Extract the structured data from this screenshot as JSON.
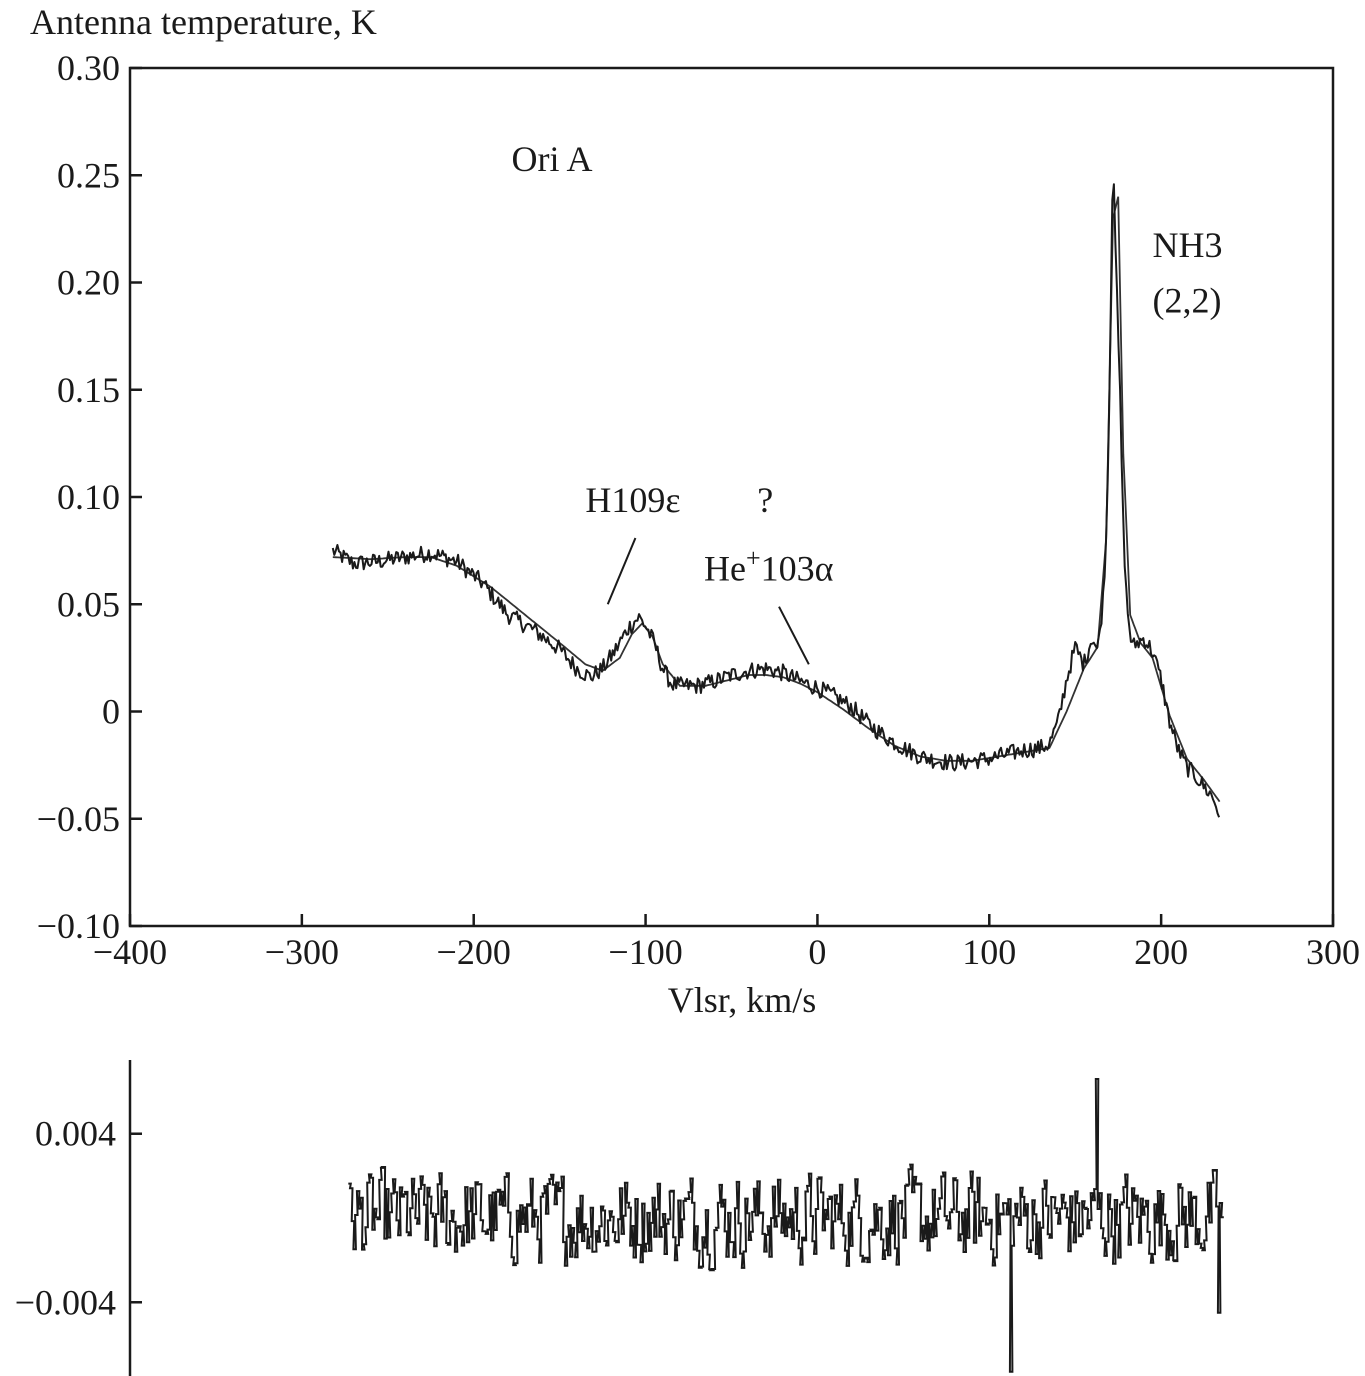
{
  "chart_data": [
    {
      "type": "line",
      "ylabel": "Antenna temperature, K",
      "xlabel": "Vlsr, km/s",
      "xlim": [
        -400,
        300
      ],
      "ylim": [
        -0.1,
        0.3
      ],
      "xticks": [
        "−400",
        "−300",
        "−200",
        "−100",
        "0",
        "100",
        "200",
        "300"
      ],
      "xtick_values": [
        -400,
        -300,
        -200,
        -100,
        0,
        100,
        200,
        300
      ],
      "yticks": [
        "0.30",
        "0.25",
        "0.20",
        "0.15",
        "0.10",
        "0.05",
        "0",
        "−0.05",
        "−0.10"
      ],
      "ytick_values": [
        0.3,
        0.25,
        0.2,
        0.15,
        0.1,
        0.05,
        0,
        -0.05,
        -0.1
      ],
      "grid": false,
      "series": [
        {
          "role": "observed",
          "x": [
            -282,
            -270,
            -255,
            -240,
            -225,
            -210,
            -195,
            -180,
            -165,
            -150,
            -140,
            -132,
            -125,
            -118,
            -110,
            -104,
            -100,
            -95,
            -90,
            -85,
            -80,
            -70,
            -60,
            -50,
            -40,
            -30,
            -20,
            -10,
            0,
            10,
            20,
            30,
            40,
            50,
            60,
            70,
            80,
            90,
            100,
            110,
            120,
            130,
            135,
            140,
            145,
            150,
            155,
            160,
            163,
            166,
            168,
            170,
            172,
            174,
            176,
            178,
            180,
            183,
            186,
            190,
            195,
            200,
            205,
            210,
            215,
            220,
            225,
            230,
            234
          ],
          "y": [
            0.075,
            0.069,
            0.07,
            0.072,
            0.074,
            0.07,
            0.06,
            0.045,
            0.038,
            0.029,
            0.02,
            0.016,
            0.02,
            0.028,
            0.039,
            0.044,
            0.04,
            0.032,
            0.02,
            0.013,
            0.012,
            0.012,
            0.014,
            0.017,
            0.019,
            0.02,
            0.018,
            0.014,
            0.011,
            0.007,
            0.002,
            -0.006,
            -0.012,
            -0.017,
            -0.021,
            -0.023,
            -0.024,
            -0.023,
            -0.022,
            -0.02,
            -0.018,
            -0.017,
            -0.015,
            -0.005,
            0.015,
            0.03,
            0.022,
            0.035,
            0.028,
            0.05,
            0.08,
            0.15,
            0.265,
            0.2,
            0.15,
            0.085,
            0.05,
            0.03,
            0.032,
            0.034,
            0.028,
            0.015,
            -0.005,
            -0.018,
            -0.026,
            -0.03,
            -0.035,
            -0.04,
            -0.048
          ]
        },
        {
          "role": "fit",
          "x": [
            -282,
            -260,
            -240,
            -225,
            -210,
            -190,
            -170,
            -150,
            -135,
            -125,
            -115,
            -108,
            -102,
            -96,
            -90,
            -80,
            -65,
            -50,
            -40,
            -30,
            -20,
            -10,
            0,
            15,
            30,
            45,
            60,
            75,
            90,
            105,
            120,
            135,
            145,
            155,
            163,
            168,
            172,
            175,
            178,
            182,
            188,
            195,
            205,
            215,
            225,
            234
          ],
          "y": [
            0.072,
            0.071,
            0.072,
            0.072,
            0.068,
            0.058,
            0.045,
            0.032,
            0.022,
            0.019,
            0.025,
            0.036,
            0.041,
            0.035,
            0.022,
            0.012,
            0.012,
            0.015,
            0.017,
            0.017,
            0.016,
            0.013,
            0.009,
            0.001,
            -0.008,
            -0.016,
            -0.021,
            -0.023,
            -0.023,
            -0.021,
            -0.019,
            -0.017,
            0.0,
            0.02,
            0.03,
            0.08,
            0.23,
            0.24,
            0.12,
            0.045,
            0.032,
            0.025,
            -0.002,
            -0.022,
            -0.032,
            -0.042
          ]
        }
      ],
      "annotations": [
        {
          "text": "Ori A",
          "x": -178,
          "y": 0.252
        },
        {
          "text": "H109ε",
          "x": -135,
          "y": 0.093,
          "pointer_x": -122,
          "pointer_y": 0.05
        },
        {
          "text": "?",
          "x": -35,
          "y": 0.093
        },
        {
          "text": "He",
          "sup": "+",
          "text_after": "103α",
          "x": -66,
          "y": 0.061,
          "pointer_x": -5,
          "pointer_y": 0.022
        },
        {
          "text": "NH3",
          "x": 195,
          "y": 0.212
        },
        {
          "text": "(2,2)",
          "x": 195,
          "y": 0.186
        }
      ]
    },
    {
      "type": "line",
      "role": "residuals",
      "xlim": [
        -400,
        300
      ],
      "ylim": [
        -0.0075,
        0.0075
      ],
      "yticks": [
        "0.004",
        "−0.004"
      ],
      "ytick_values": [
        0.004,
        -0.004
      ],
      "series": [
        {
          "x_range": [
            -273,
            235
          ],
          "amplitude": 0.0032,
          "extremes": [
            {
              "x": 162,
              "y": 0.0066
            },
            {
              "x": 112,
              "y": -0.0073
            },
            {
              "x": 233,
              "y": -0.0045
            }
          ]
        }
      ]
    }
  ]
}
